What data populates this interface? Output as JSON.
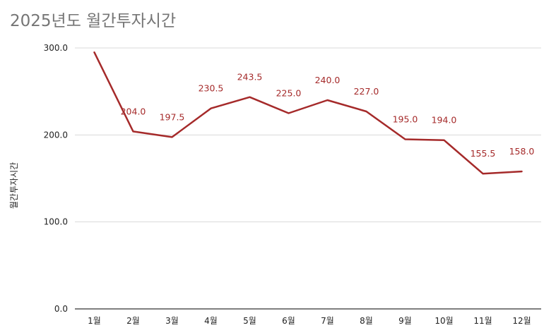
{
  "chart_data": {
    "type": "line",
    "title": "2025년도 월간투자시간",
    "ylabel": "월간투자시간",
    "xlabel": "",
    "categories": [
      "1월",
      "2월",
      "3월",
      "4월",
      "5월",
      "6월",
      "7월",
      "8월",
      "9월",
      "10월",
      "11월",
      "12월"
    ],
    "series": [
      {
        "values": [
          295,
          204.0,
          197.5,
          230.5,
          243.5,
          225.0,
          240.0,
          227.0,
          195.0,
          194.0,
          155.5,
          158.0
        ],
        "labels": [
          null,
          "204.0",
          "197.5",
          "230.5",
          "243.5",
          "225.0",
          "240.0",
          "227.0",
          "195.0",
          "194.0",
          "155.5",
          "158.0"
        ],
        "color": "#a52a2a"
      }
    ],
    "ylim": [
      0,
      300
    ],
    "yticks": [
      "0.0",
      "100.0",
      "200.0",
      "300.0"
    ],
    "grid": true,
    "legend": "none"
  }
}
